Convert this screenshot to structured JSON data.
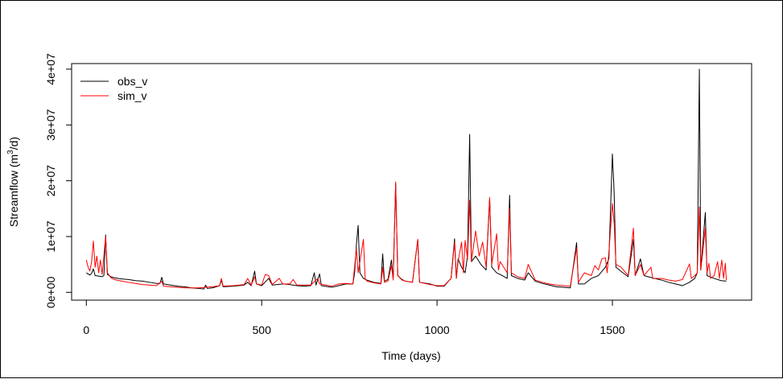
{
  "chart_data": {
    "type": "line",
    "xlabel": "Time (days)",
    "ylabel_main": "Streamflow (m",
    "ylabel_sup": "3",
    "ylabel_tail": "/d)",
    "xlim": [
      -42,
      1897
    ],
    "ylim": [
      -1400000,
      41000000
    ],
    "x_ticks": [
      0,
      500,
      1000,
      1500
    ],
    "x_tick_labels": [
      "0",
      "500",
      "1000",
      "1500"
    ],
    "y_ticks": [
      0,
      10000000,
      20000000,
      30000000,
      40000000
    ],
    "y_tick_labels": [
      "0e+00",
      "1e+07",
      "2e+07",
      "3e+07",
      "4e+07"
    ],
    "grid": false,
    "legend_position": "top-left",
    "series": [
      {
        "name": "obs_v",
        "color": "#000000",
        "points": [
          [
            0,
            3500000
          ],
          [
            5,
            3300000
          ],
          [
            10,
            3100000
          ],
          [
            15,
            3400000
          ],
          [
            20,
            4200000
          ],
          [
            25,
            3000000
          ],
          [
            35,
            2900000
          ],
          [
            45,
            2800000
          ],
          [
            50,
            3000000
          ],
          [
            55,
            10300000
          ],
          [
            60,
            3200000
          ],
          [
            70,
            2800000
          ],
          [
            80,
            2600000
          ],
          [
            100,
            2400000
          ],
          [
            120,
            2300000
          ],
          [
            140,
            2100000
          ],
          [
            160,
            2000000
          ],
          [
            180,
            1800000
          ],
          [
            200,
            1600000
          ],
          [
            210,
            1600000
          ],
          [
            215,
            2700000
          ],
          [
            220,
            1500000
          ],
          [
            240,
            1300000
          ],
          [
            260,
            1100000
          ],
          [
            280,
            1000000
          ],
          [
            300,
            800000
          ],
          [
            320,
            700000
          ],
          [
            335,
            600000
          ],
          [
            340,
            1300000
          ],
          [
            345,
            700000
          ],
          [
            360,
            800000
          ],
          [
            380,
            1200000
          ],
          [
            385,
            2200000
          ],
          [
            390,
            1000000
          ],
          [
            420,
            1100000
          ],
          [
            450,
            1300000
          ],
          [
            460,
            1800000
          ],
          [
            470,
            1200000
          ],
          [
            480,
            3800000
          ],
          [
            485,
            1500000
          ],
          [
            500,
            1200000
          ],
          [
            520,
            2500000
          ],
          [
            530,
            1300000
          ],
          [
            560,
            1500000
          ],
          [
            580,
            1400000
          ],
          [
            600,
            1200000
          ],
          [
            620,
            1100000
          ],
          [
            640,
            1200000
          ],
          [
            650,
            3500000
          ],
          [
            655,
            1300000
          ],
          [
            665,
            3300000
          ],
          [
            670,
            1200000
          ],
          [
            700,
            900000
          ],
          [
            720,
            1200000
          ],
          [
            740,
            1500000
          ],
          [
            760,
            1500000
          ],
          [
            765,
            3500000
          ],
          [
            770,
            8500000
          ],
          [
            775,
            12000000
          ],
          [
            780,
            3500000
          ],
          [
            790,
            2500000
          ],
          [
            800,
            2200000
          ],
          [
            820,
            1800000
          ],
          [
            840,
            1600000
          ],
          [
            845,
            6900000
          ],
          [
            850,
            2000000
          ],
          [
            860,
            2300000
          ],
          [
            870,
            5800000
          ],
          [
            875,
            2500000
          ],
          [
            882,
            19500000
          ],
          [
            888,
            3000000
          ],
          [
            900,
            2300000
          ],
          [
            910,
            2000000
          ],
          [
            930,
            1800000
          ],
          [
            945,
            9400000
          ],
          [
            950,
            1800000
          ],
          [
            980,
            1500000
          ],
          [
            1000,
            1100000
          ],
          [
            1020,
            1100000
          ],
          [
            1040,
            2500000
          ],
          [
            1050,
            9600000
          ],
          [
            1055,
            2500000
          ],
          [
            1060,
            6000000
          ],
          [
            1070,
            4500000
          ],
          [
            1080,
            3500000
          ],
          [
            1087,
            6500000
          ],
          [
            1093,
            28300000
          ],
          [
            1098,
            5500000
          ],
          [
            1110,
            6500000
          ],
          [
            1125,
            5000000
          ],
          [
            1140,
            4000000
          ],
          [
            1150,
            16800000
          ],
          [
            1156,
            4500000
          ],
          [
            1170,
            3500000
          ],
          [
            1180,
            3200000
          ],
          [
            1200,
            2500000
          ],
          [
            1207,
            17400000
          ],
          [
            1212,
            3000000
          ],
          [
            1230,
            2500000
          ],
          [
            1250,
            2200000
          ],
          [
            1260,
            3500000
          ],
          [
            1280,
            2000000
          ],
          [
            1300,
            1600000
          ],
          [
            1320,
            1300000
          ],
          [
            1340,
            1000000
          ],
          [
            1360,
            900000
          ],
          [
            1380,
            800000
          ],
          [
            1398,
            8900000
          ],
          [
            1403,
            1500000
          ],
          [
            1420,
            1500000
          ],
          [
            1440,
            2500000
          ],
          [
            1460,
            3000000
          ],
          [
            1480,
            4500000
          ],
          [
            1490,
            6000000
          ],
          [
            1500,
            24800000
          ],
          [
            1505,
            18000000
          ],
          [
            1510,
            4500000
          ],
          [
            1530,
            3500000
          ],
          [
            1545,
            2800000
          ],
          [
            1560,
            9500000
          ],
          [
            1565,
            3000000
          ],
          [
            1580,
            6000000
          ],
          [
            1590,
            3000000
          ],
          [
            1620,
            2500000
          ],
          [
            1640,
            2200000
          ],
          [
            1660,
            1800000
          ],
          [
            1680,
            1500000
          ],
          [
            1700,
            1200000
          ],
          [
            1720,
            1800000
          ],
          [
            1735,
            2500000
          ],
          [
            1742,
            3500000
          ],
          [
            1748,
            40000000
          ],
          [
            1752,
            4000000
          ],
          [
            1765,
            14300000
          ],
          [
            1770,
            3000000
          ],
          [
            1790,
            2500000
          ],
          [
            1810,
            2100000
          ],
          [
            1825,
            2000000
          ]
        ]
      },
      {
        "name": "sim_v",
        "color": "#ff0000",
        "points": [
          [
            0,
            5800000
          ],
          [
            5,
            4500000
          ],
          [
            10,
            3800000
          ],
          [
            15,
            5500000
          ],
          [
            20,
            9200000
          ],
          [
            25,
            4500000
          ],
          [
            30,
            6500000
          ],
          [
            35,
            3500000
          ],
          [
            40,
            5800000
          ],
          [
            45,
            3200000
          ],
          [
            55,
            10000000
          ],
          [
            60,
            3500000
          ],
          [
            70,
            2600000
          ],
          [
            80,
            2300000
          ],
          [
            100,
            2000000
          ],
          [
            120,
            1800000
          ],
          [
            140,
            1600000
          ],
          [
            160,
            1400000
          ],
          [
            180,
            1300000
          ],
          [
            200,
            1200000
          ],
          [
            215,
            2000000
          ],
          [
            220,
            1100000
          ],
          [
            240,
            1000000
          ],
          [
            260,
            900000
          ],
          [
            280,
            800000
          ],
          [
            300,
            800000
          ],
          [
            320,
            800000
          ],
          [
            340,
            900000
          ],
          [
            360,
            1000000
          ],
          [
            380,
            1200000
          ],
          [
            385,
            2500000
          ],
          [
            390,
            1100000
          ],
          [
            420,
            1200000
          ],
          [
            450,
            1400000
          ],
          [
            460,
            2500000
          ],
          [
            470,
            1300000
          ],
          [
            480,
            2800000
          ],
          [
            485,
            1500000
          ],
          [
            500,
            1300000
          ],
          [
            510,
            3200000
          ],
          [
            520,
            3000000
          ],
          [
            530,
            1400000
          ],
          [
            550,
            2500000
          ],
          [
            560,
            1500000
          ],
          [
            580,
            1500000
          ],
          [
            590,
            2300000
          ],
          [
            600,
            1300000
          ],
          [
            620,
            1300000
          ],
          [
            640,
            1300000
          ],
          [
            660,
            2500000
          ],
          [
            665,
            1500000
          ],
          [
            700,
            1100000
          ],
          [
            720,
            1500000
          ],
          [
            740,
            1600000
          ],
          [
            760,
            1500000
          ],
          [
            770,
            7800000
          ],
          [
            775,
            3500000
          ],
          [
            790,
            9500000
          ],
          [
            795,
            2500000
          ],
          [
            800,
            2000000
          ],
          [
            820,
            1700000
          ],
          [
            840,
            1500000
          ],
          [
            845,
            4500000
          ],
          [
            850,
            1800000
          ],
          [
            860,
            2000000
          ],
          [
            870,
            4800000
          ],
          [
            875,
            2200000
          ],
          [
            882,
            19800000
          ],
          [
            888,
            3000000
          ],
          [
            900,
            2200000
          ],
          [
            910,
            2000000
          ],
          [
            930,
            1800000
          ],
          [
            945,
            9500000
          ],
          [
            950,
            1800000
          ],
          [
            980,
            1400000
          ],
          [
            1000,
            1200000
          ],
          [
            1020,
            1200000
          ],
          [
            1040,
            2500000
          ],
          [
            1050,
            9000000
          ],
          [
            1055,
            2500000
          ],
          [
            1060,
            5500000
          ],
          [
            1070,
            9000000
          ],
          [
            1075,
            3500000
          ],
          [
            1080,
            9300000
          ],
          [
            1087,
            6000000
          ],
          [
            1093,
            16500000
          ],
          [
            1098,
            5500000
          ],
          [
            1110,
            11000000
          ],
          [
            1120,
            6500000
          ],
          [
            1130,
            9000000
          ],
          [
            1140,
            4500000
          ],
          [
            1150,
            17000000
          ],
          [
            1156,
            5000000
          ],
          [
            1170,
            10500000
          ],
          [
            1175,
            4000000
          ],
          [
            1180,
            5500000
          ],
          [
            1200,
            3500000
          ],
          [
            1207,
            15000000
          ],
          [
            1212,
            3500000
          ],
          [
            1230,
            2800000
          ],
          [
            1250,
            2500000
          ],
          [
            1260,
            5000000
          ],
          [
            1280,
            2200000
          ],
          [
            1300,
            1800000
          ],
          [
            1320,
            1500000
          ],
          [
            1340,
            1300000
          ],
          [
            1360,
            1200000
          ],
          [
            1380,
            1100000
          ],
          [
            1398,
            8000000
          ],
          [
            1403,
            1800000
          ],
          [
            1420,
            3500000
          ],
          [
            1440,
            3000000
          ],
          [
            1450,
            4800000
          ],
          [
            1460,
            4000000
          ],
          [
            1470,
            6000000
          ],
          [
            1480,
            6200000
          ],
          [
            1485,
            3500000
          ],
          [
            1490,
            7200000
          ],
          [
            1500,
            15900000
          ],
          [
            1505,
            12500000
          ],
          [
            1510,
            5000000
          ],
          [
            1525,
            4500000
          ],
          [
            1545,
            3000000
          ],
          [
            1560,
            11500000
          ],
          [
            1565,
            3000000
          ],
          [
            1580,
            5000000
          ],
          [
            1590,
            3000000
          ],
          [
            1610,
            4500000
          ],
          [
            1615,
            2500000
          ],
          [
            1640,
            2500000
          ],
          [
            1660,
            2200000
          ],
          [
            1680,
            2000000
          ],
          [
            1700,
            2300000
          ],
          [
            1720,
            5100000
          ],
          [
            1725,
            2500000
          ],
          [
            1735,
            3000000
          ],
          [
            1742,
            3500000
          ],
          [
            1748,
            15300000
          ],
          [
            1752,
            4000000
          ],
          [
            1765,
            11500000
          ],
          [
            1770,
            3500000
          ],
          [
            1775,
            5200000
          ],
          [
            1780,
            2500000
          ],
          [
            1790,
            3000000
          ],
          [
            1800,
            5500000
          ],
          [
            1805,
            2500000
          ],
          [
            1812,
            5800000
          ],
          [
            1817,
            2500000
          ],
          [
            1822,
            5200000
          ],
          [
            1825,
            2200000
          ]
        ]
      }
    ]
  }
}
